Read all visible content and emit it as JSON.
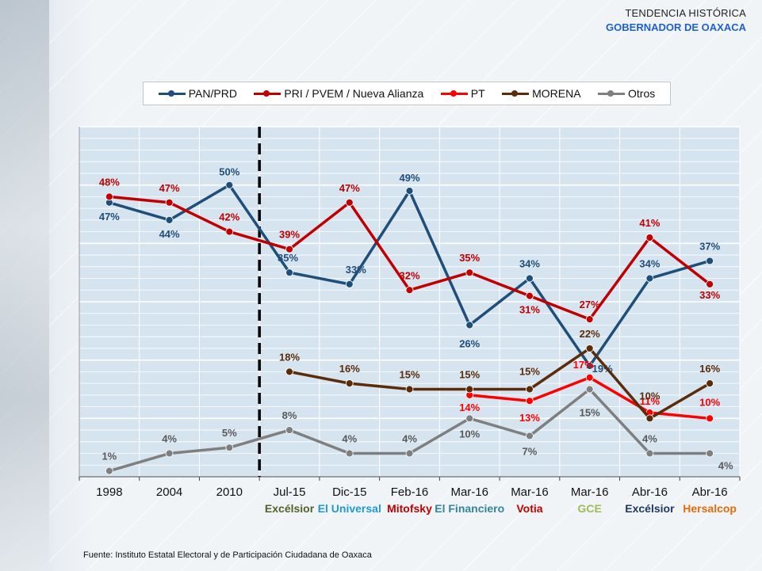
{
  "header": {
    "title": "TENDENCIA HISTÓRICA",
    "subtitle": "GOBERNADOR DE OAXACA"
  },
  "source": "Fuente: Instituto Estatal Electoral y de Participación Ciudadana de Oaxaca",
  "colors": {
    "pan": "#1f4e79",
    "pri": "#c00000",
    "pt": "#ff0000",
    "morena": "#5b2c0a",
    "otros": "#7f7f7f",
    "grid": "#ffffff",
    "plot_bg": "#d6e4f0"
  },
  "chart_data": {
    "type": "line",
    "categories": [
      "1998",
      "2004",
      "2010",
      "Jul-15",
      "Dic-15",
      "Feb-16",
      "Mar-16",
      "Mar-16",
      "Mar-16",
      "Abr-16",
      "Abr-16"
    ],
    "pollsters": [
      {
        "label": "",
        "color": "#000000"
      },
      {
        "label": "",
        "color": "#000000"
      },
      {
        "label": "",
        "color": "#000000"
      },
      {
        "label": "Excélsior",
        "color": "#4f6228"
      },
      {
        "label": "El Universal",
        "color": "#1f9ad6"
      },
      {
        "label": "Mitofsky",
        "color": "#c00000"
      },
      {
        "label": "El Financiero",
        "color": "#31849b"
      },
      {
        "label": "Votia",
        "color": "#c00000"
      },
      {
        "label": "GCE",
        "color": "#9bbb59"
      },
      {
        "label": "Excélsior",
        "color": "#1f3864"
      },
      {
        "label": "Hersalcop",
        "color": "#e36c09"
      }
    ],
    "divider_after_index": 2,
    "ylim": [
      0,
      60
    ],
    "series": [
      {
        "key": "pan",
        "name": "PAN/PRD",
        "color": "#1f4e79",
        "values": [
          47,
          44,
          50,
          35,
          33,
          49,
          26,
          34,
          19,
          34,
          37
        ],
        "labels": [
          "47%",
          "44%",
          "50%",
          "35%",
          "33%",
          "49%",
          "26%",
          "34%",
          "19%",
          "34%",
          "37%"
        ]
      },
      {
        "key": "pri",
        "name": "PRI / PVEM / Nueva Alianza",
        "color": "#c00000",
        "values": [
          48,
          47,
          42,
          39,
          47,
          32,
          35,
          31,
          27,
          41,
          33
        ],
        "labels": [
          "48%",
          "47%",
          "42%",
          "39%",
          "47%",
          "32%",
          "35%",
          "31%",
          "27%",
          "41%",
          "33%"
        ]
      },
      {
        "key": "pt",
        "name": "PT",
        "color": "#ff0000",
        "values": [
          null,
          null,
          null,
          null,
          null,
          null,
          14,
          13,
          17,
          11,
          10
        ],
        "labels": [
          "",
          "",
          "",
          "",
          "",
          "",
          "14%",
          "13%",
          "17%",
          "11%",
          "10%"
        ]
      },
      {
        "key": "morena",
        "name": "MORENA",
        "color": "#5b2c0a",
        "values": [
          null,
          null,
          null,
          18,
          16,
          15,
          15,
          15,
          22,
          10,
          16
        ],
        "labels": [
          "",
          "",
          "",
          "18%",
          "16%",
          "15%",
          "15%",
          "15%",
          "22%",
          "10%",
          "16%"
        ]
      },
      {
        "key": "otros",
        "name": "Otros",
        "color": "#7f7f7f",
        "values": [
          1,
          4,
          5,
          8,
          4,
          4,
          10,
          7,
          15,
          4,
          4
        ],
        "labels": [
          "1%",
          "4%",
          "5%",
          "8%",
          "4%",
          "4%",
          "10%",
          "7%",
          "15%",
          "4%",
          "4%"
        ]
      }
    ],
    "legend_position": "top",
    "grid": true
  }
}
